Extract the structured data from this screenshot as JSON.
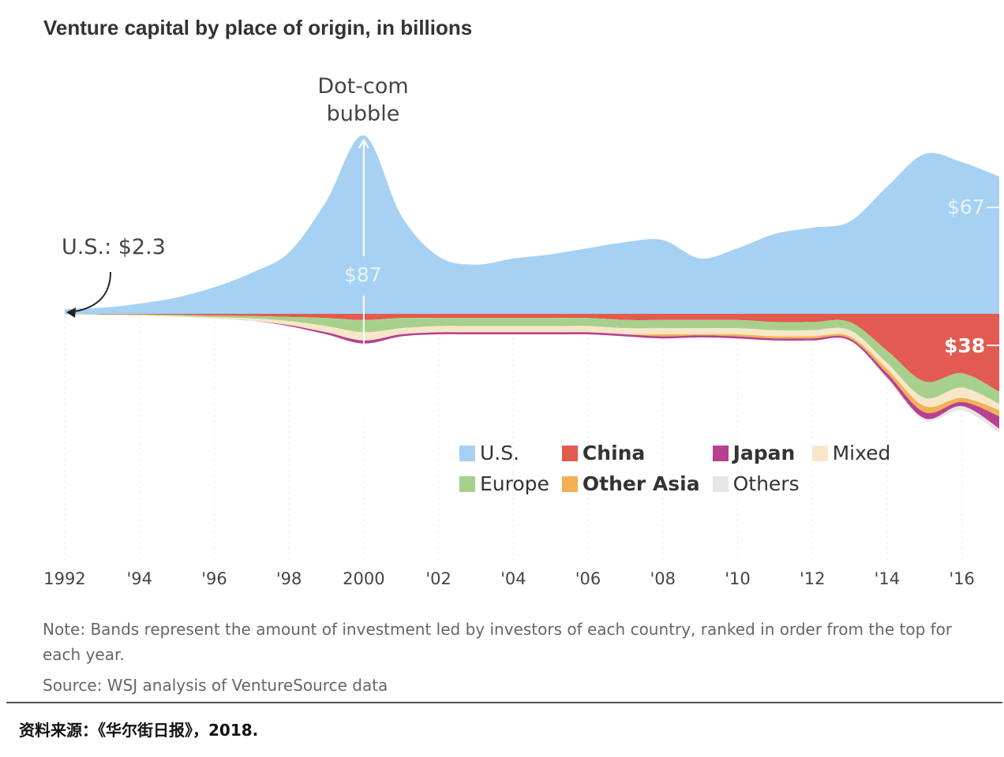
{
  "chart_data": {
    "type": "area",
    "subtype": "streamgraph",
    "title": "Venture capital by place of origin, in billions",
    "xlabel": "",
    "ylabel": "",
    "x": [
      1992,
      1993,
      1994,
      1995,
      1996,
      1997,
      1998,
      1999,
      2000,
      2001,
      2002,
      2003,
      2004,
      2005,
      2006,
      2007,
      2008,
      2009,
      2010,
      2011,
      2012,
      2013,
      2014,
      2015,
      2016,
      2017
    ],
    "tick_labels": [
      "1992",
      "'94",
      "'96",
      "'98",
      "2000",
      "'02",
      "'04",
      "'06",
      "'08",
      "'10",
      "'12",
      "'14",
      "'16"
    ],
    "series": [
      {
        "name": "U.S.",
        "color": "#a6d1f2",
        "values": [
          2.3,
          3,
          5,
          8,
          13,
          20,
          30,
          55,
          87,
          48,
          28,
          24,
          27,
          29,
          32,
          35,
          36,
          27,
          32,
          39,
          42,
          45,
          62,
          78,
          74,
          67
        ]
      },
      {
        "name": "Europe",
        "color": "#a8d08d",
        "values": [
          0.1,
          0.2,
          0.3,
          0.5,
          0.8,
          1.2,
          2,
          4,
          6,
          5,
          4,
          4,
          4,
          4,
          4,
          4,
          4,
          4,
          4,
          4,
          4,
          4,
          6,
          8,
          7,
          6
        ]
      },
      {
        "name": "Mixed",
        "color": "#f7e7c8",
        "values": [
          0.1,
          0.2,
          0.3,
          0.5,
          0.8,
          1.2,
          2,
          3,
          4,
          3,
          3,
          3,
          3,
          3,
          3,
          3,
          3,
          3,
          3,
          3,
          3,
          3,
          3,
          4,
          5,
          3
        ]
      },
      {
        "name": "Other Asia",
        "color": "#f2b055",
        "values": [
          0,
          0,
          0,
          0,
          0,
          0,
          0,
          0,
          0,
          0,
          0,
          0,
          0,
          0,
          0,
          0,
          1,
          0.5,
          1,
          1,
          1,
          1,
          2,
          3,
          2,
          3
        ]
      },
      {
        "name": "Japan",
        "color": "#b8418f",
        "values": [
          0,
          0,
          0,
          0,
          0,
          0,
          0.5,
          1,
          1.5,
          1,
          1,
          1,
          1,
          1,
          1,
          1,
          1,
          1,
          1,
          1,
          1,
          1,
          2,
          3,
          2,
          6
        ]
      },
      {
        "name": "China",
        "color": "#e35a50",
        "values": [
          0.1,
          0.2,
          0.3,
          0.5,
          0.8,
          1,
          1.5,
          2,
          3,
          2,
          2,
          2,
          2,
          2,
          2,
          3,
          3,
          3,
          3,
          4,
          4,
          4,
          18,
          33,
          29,
          38
        ]
      },
      {
        "name": "Others",
        "color": "#e6e6e6",
        "values": [
          0,
          0,
          0,
          0,
          0,
          0,
          0,
          0,
          0,
          0,
          0,
          0,
          0,
          0,
          0,
          0,
          0,
          0,
          0,
          0,
          0,
          0,
          1,
          1,
          2,
          2
        ]
      }
    ],
    "legend": [
      {
        "label": "U.S.",
        "color": "#a6d1f2",
        "bold": false
      },
      {
        "label": "China",
        "color": "#e35a50",
        "bold": true
      },
      {
        "label": "Japan",
        "color": "#b8418f",
        "bold": true
      },
      {
        "label": "Mixed",
        "color": "#f7e7c8",
        "bold": false
      },
      {
        "label": "Europe",
        "color": "#a8d08d",
        "bold": false
      },
      {
        "label": "Other Asia",
        "color": "#f2b055",
        "bold": true
      },
      {
        "label": "Others",
        "color": "#e6e6e6",
        "bold": false
      }
    ],
    "annotations": {
      "dotcom": "Dot-com bubble",
      "dotcom_line1": "Dot-com",
      "dotcom_line2": "bubble",
      "us_start": "U.S.: $2.3",
      "us_2000": "$87",
      "us_2017": "$67",
      "china_2017": "$38"
    },
    "note": "Note: Bands represent the amount of investment led by investors of each country, ranked in order from the top for each year.",
    "source": "Source: WSJ analysis of VentureSource data"
  },
  "footer": {
    "source_cn": "资料来源：《华尔街日报》，2018."
  }
}
